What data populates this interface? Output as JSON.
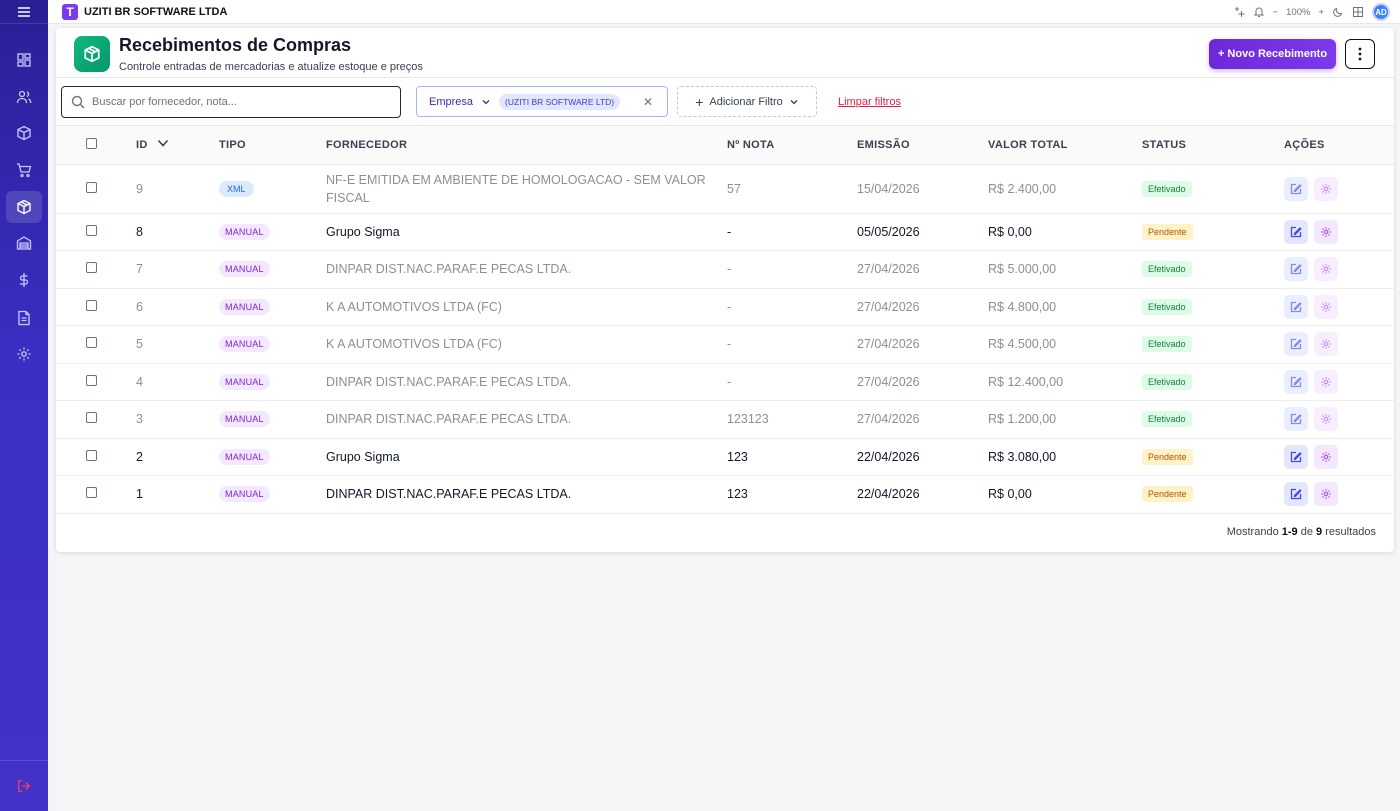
{
  "app": {
    "company": "UZITI BR SOFTWARE LTDA",
    "logo_letter": "T",
    "zoom": "100%",
    "avatar": "AD"
  },
  "page": {
    "title": "Recebimentos de Compras",
    "subtitle": "Controle entradas de mercadorias e atualize estoque e preços",
    "new_button": "+ Novo Recebimento"
  },
  "filters": {
    "search_placeholder": "Buscar por fornecedor, nota...",
    "empresa_label": "Empresa",
    "empresa_value": "(UZITI BR SOFTWARE LTD)",
    "add_filter": "Adicionar Filtro",
    "clear": "Limpar filtros"
  },
  "table": {
    "headers": {
      "id": "ID",
      "tipo": "TIPO",
      "fornecedor": "FORNECEDOR",
      "nota": "Nº NOTA",
      "emissao": "EMISSÃO",
      "valor": "VALOR TOTAL",
      "status": "STATUS",
      "acoes": "AÇÕES"
    },
    "rows": [
      {
        "id": "9",
        "tipo": "XML",
        "fornecedor": "NF-E EMITIDA EM AMBIENTE DE HOMOLOGACAO - SEM VALOR FISCAL",
        "nota": "57",
        "emissao": "15/04/2026",
        "valor": "R$ 2.400,00",
        "status": "Efetivado"
      },
      {
        "id": "8",
        "tipo": "MANUAL",
        "fornecedor": "Grupo Sigma",
        "nota": "-",
        "emissao": "05/05/2026",
        "valor": "R$ 0,00",
        "status": "Pendente"
      },
      {
        "id": "7",
        "tipo": "MANUAL",
        "fornecedor": "DINPAR DIST.NAC.PARAF.E PECAS LTDA.",
        "nota": "-",
        "emissao": "27/04/2026",
        "valor": "R$ 5.000,00",
        "status": "Efetivado"
      },
      {
        "id": "6",
        "tipo": "MANUAL",
        "fornecedor": "K A AUTOMOTIVOS LTDA (FC)",
        "nota": "-",
        "emissao": "27/04/2026",
        "valor": "R$ 4.800,00",
        "status": "Efetivado"
      },
      {
        "id": "5",
        "tipo": "MANUAL",
        "fornecedor": "K A AUTOMOTIVOS LTDA (FC)",
        "nota": "-",
        "emissao": "27/04/2026",
        "valor": "R$ 4.500,00",
        "status": "Efetivado"
      },
      {
        "id": "4",
        "tipo": "MANUAL",
        "fornecedor": "DINPAR DIST.NAC.PARAF.E PECAS LTDA.",
        "nota": "-",
        "emissao": "27/04/2026",
        "valor": "R$ 12.400,00",
        "status": "Efetivado"
      },
      {
        "id": "3",
        "tipo": "MANUAL",
        "fornecedor": "DINPAR DIST.NAC.PARAF.E PECAS LTDA.",
        "nota": "123123",
        "emissao": "27/04/2026",
        "valor": "R$ 1.200,00",
        "status": "Efetivado"
      },
      {
        "id": "2",
        "tipo": "MANUAL",
        "fornecedor": "Grupo Sigma",
        "nota": "123",
        "emissao": "22/04/2026",
        "valor": "R$ 3.080,00",
        "status": "Pendente"
      },
      {
        "id": "1",
        "tipo": "MANUAL",
        "fornecedor": "DINPAR DIST.NAC.PARAF.E PECAS LTDA.",
        "nota": "123",
        "emissao": "22/04/2026",
        "valor": "R$ 0,00",
        "status": "Pendente"
      }
    ]
  },
  "footer": {
    "prefix": "Mostrando",
    "range": "1-9",
    "of": "de",
    "total": "9",
    "suffix": "resultados"
  },
  "colors": {
    "sidebar": "#3a2fc4",
    "accent": "#7c3aed",
    "brand_green": "#10b981"
  }
}
